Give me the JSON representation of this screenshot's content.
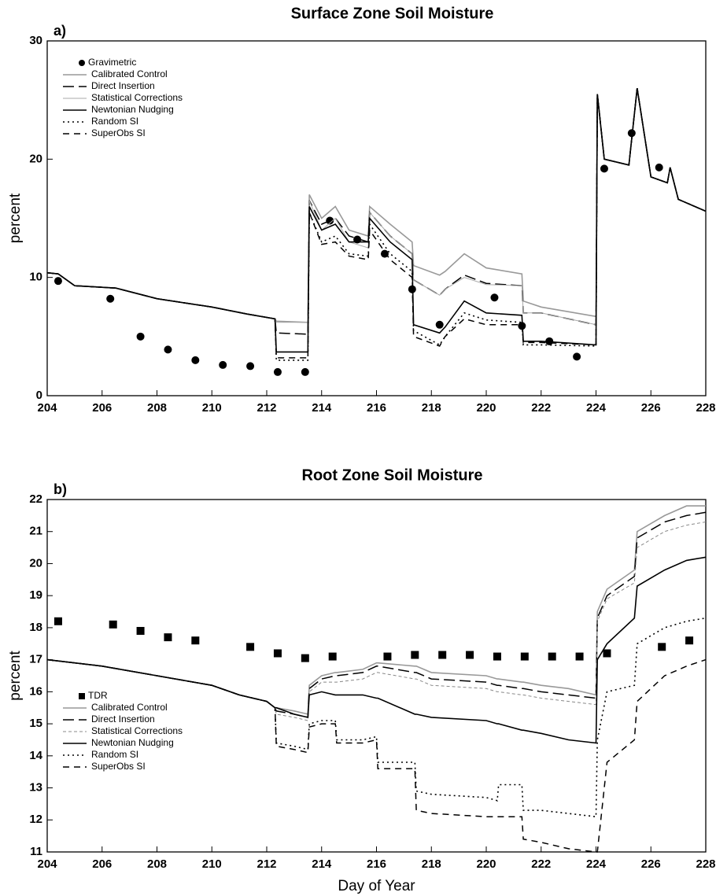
{
  "chart_data": [
    {
      "type": "line",
      "title": "Surface Zone Soil Moisture",
      "panel_label": "a)",
      "ylabel": "percent",
      "xlim": [
        204,
        228
      ],
      "xticks": [
        204,
        206,
        208,
        210,
        212,
        214,
        216,
        218,
        220,
        222,
        224,
        226,
        228
      ],
      "ylim": [
        0,
        30
      ],
      "yticks": [
        0,
        10,
        20,
        30
      ],
      "legend": "upper left",
      "x": [
        204,
        204.4,
        205,
        206.5,
        208,
        210,
        211.3,
        212.3,
        212.35,
        213.5,
        213.55,
        214,
        214.5,
        215,
        215.7,
        215.75,
        216.5,
        217.3,
        217.35,
        218.3,
        218.5,
        219.2,
        220,
        221.3,
        221.35,
        222,
        224,
        224.05,
        224.3,
        225.2,
        225.5,
        226,
        226.6,
        226.7,
        227,
        228
      ],
      "series": [
        {
          "name": "Gravimetric",
          "color": "#000000",
          "marker": "circle",
          "x": [
            204.4,
            206.3,
            207.4,
            208.4,
            209.4,
            210.4,
            211.4,
            212.4,
            213.4,
            214.3,
            215.3,
            216.3,
            217.3,
            218.3,
            220.3,
            221.3,
            222.3,
            223.3,
            224.3,
            225.3,
            226.3
          ],
          "values": [
            9.7,
            8.2,
            5.0,
            3.9,
            3.0,
            2.6,
            2.5,
            2.0,
            2.0,
            14.8,
            13.2,
            12.0,
            9.0,
            6.0,
            8.3,
            5.9,
            4.6,
            3.3,
            19.2,
            22.2,
            19.3
          ]
        },
        {
          "name": "Calibrated Control",
          "color": "#999999",
          "linestyle": "solid",
          "values": [
            10.4,
            10.3,
            9.3,
            9.1,
            8.2,
            7.5,
            6.9,
            6.5,
            6.3,
            6.2,
            17,
            15,
            16,
            14,
            13.5,
            16,
            14.5,
            13,
            11,
            10.2,
            10.5,
            12,
            10.8,
            10.3,
            8,
            7.5,
            6.7,
            25.5,
            20,
            19.5,
            26,
            18.5,
            18,
            19.3,
            16.6,
            15.6
          ]
        },
        {
          "name": "Direct Insertion",
          "color": "#000000",
          "linestyle": "longdash",
          "values": [
            10.4,
            10.3,
            9.3,
            9.1,
            8.2,
            7.5,
            6.9,
            6.5,
            5.3,
            5.2,
            16.5,
            14.5,
            15,
            13.5,
            13,
            15.5,
            13.5,
            12,
            9.8,
            8.5,
            9,
            10.2,
            9.5,
            9.3,
            7,
            7,
            6,
            25.5,
            20,
            19.5,
            26,
            18.5,
            18,
            19.3,
            16.6,
            15.6
          ]
        },
        {
          "name": "Statistical Corrections",
          "color": "#aaaaaa",
          "linestyle": "thin",
          "values": [
            10.4,
            10.3,
            9.3,
            9.1,
            8.2,
            7.5,
            6.9,
            6.5,
            6.2,
            6.2,
            16.5,
            14,
            15,
            13,
            12.5,
            15.5,
            13.5,
            12,
            9.8,
            8.5,
            9,
            10,
            9.4,
            9.3,
            7,
            7,
            6,
            25.5,
            20,
            19.5,
            26,
            18.5,
            18,
            19.3,
            16.6,
            15.6
          ]
        },
        {
          "name": "Newtonian Nudging",
          "color": "#000000",
          "linestyle": "solid",
          "values": [
            10.4,
            10.3,
            9.3,
            9.1,
            8.2,
            7.5,
            6.9,
            6.5,
            3.7,
            3.7,
            16,
            14,
            14.5,
            13,
            13,
            15,
            13,
            11.5,
            6,
            5.3,
            5.8,
            8,
            7,
            6.8,
            4.6,
            4.6,
            4.3,
            25.5,
            20,
            19.5,
            26,
            18.5,
            18,
            19.3,
            16.6,
            15.6
          ]
        },
        {
          "name": "Random SI",
          "color": "#000000",
          "linestyle": "dotted",
          "values": [
            10.4,
            10.3,
            9.3,
            9.1,
            8.2,
            7.5,
            6.9,
            6.5,
            3.0,
            3.0,
            15.5,
            13,
            13.5,
            12,
            11.8,
            14.5,
            12,
            10.5,
            5.5,
            4.3,
            5,
            7,
            6.4,
            6.2,
            4.3,
            4.3,
            4.2,
            25.5,
            20,
            19.5,
            26,
            18.5,
            18,
            19.3,
            16.6,
            15.6
          ]
        },
        {
          "name": "SuperObs SI",
          "color": "#000000",
          "linestyle": "dashed",
          "values": [
            10.4,
            10.3,
            9.3,
            9.1,
            8.2,
            7.5,
            6.9,
            6.5,
            3.2,
            3.2,
            15.5,
            12.8,
            13,
            11.8,
            11.5,
            14,
            11.5,
            10,
            5,
            4.2,
            5,
            6.5,
            6,
            6,
            4.5,
            4.5,
            4.3,
            25.5,
            20,
            19.5,
            26,
            18.5,
            18,
            19.3,
            16.6,
            15.6
          ]
        }
      ]
    },
    {
      "type": "line",
      "title": "Root Zone Soil Moisture",
      "panel_label": "b)",
      "ylabel": "percent",
      "xlabel": "Day of Year",
      "xlim": [
        204,
        228
      ],
      "xticks": [
        204,
        206,
        208,
        210,
        212,
        214,
        216,
        218,
        220,
        222,
        224,
        226,
        228
      ],
      "ylim": [
        11,
        22
      ],
      "yticks": [
        11,
        12,
        13,
        14,
        15,
        16,
        17,
        18,
        19,
        20,
        21,
        22
      ],
      "legend": "lower left",
      "x": [
        204,
        206,
        208,
        210,
        211,
        212,
        212.3,
        212.35,
        213,
        213.5,
        213.55,
        214,
        214.5,
        214.55,
        215.5,
        216,
        216.05,
        217.4,
        217.45,
        218,
        220,
        220.4,
        220.45,
        221.3,
        221.35,
        222,
        223,
        224,
        224.05,
        224.4,
        225.4,
        225.5,
        226.5,
        227.3,
        228
      ],
      "series": [
        {
          "name": "TDR",
          "color": "#000000",
          "marker": "square",
          "x": [
            204.4,
            206.4,
            207.4,
            208.4,
            209.4,
            211.4,
            212.4,
            213.4,
            214.4,
            216.4,
            217.4,
            218.4,
            219.4,
            220.4,
            221.4,
            222.4,
            223.4,
            224.4,
            226.4,
            227.4
          ],
          "values": [
            18.2,
            18.1,
            17.9,
            17.7,
            17.6,
            17.4,
            17.2,
            17.05,
            17.1,
            17.1,
            17.15,
            17.15,
            17.15,
            17.1,
            17.1,
            17.1,
            17.1,
            17.2,
            17.4,
            17.6
          ]
        },
        {
          "name": "Calibrated Control",
          "color": "#999999",
          "linestyle": "solid",
          "values": [
            17,
            16.8,
            16.5,
            16.2,
            15.9,
            15.7,
            15.5,
            15.5,
            15.4,
            15.3,
            16.2,
            16.5,
            16.6,
            16.6,
            16.7,
            16.9,
            16.9,
            16.8,
            16.8,
            16.6,
            16.5,
            16.4,
            16.4,
            16.3,
            16.3,
            16.2,
            16.1,
            15.9,
            18.5,
            19.2,
            19.8,
            21.0,
            21.5,
            21.8,
            21.8
          ]
        },
        {
          "name": "Direct Insertion",
          "color": "#000000",
          "linestyle": "longdash",
          "values": [
            17,
            16.8,
            16.5,
            16.2,
            15.9,
            15.7,
            15.5,
            15.4,
            15.3,
            15.2,
            16.1,
            16.4,
            16.5,
            16.5,
            16.6,
            16.8,
            16.8,
            16.6,
            16.6,
            16.4,
            16.3,
            16.2,
            16.2,
            16.1,
            16.1,
            16,
            15.9,
            15.8,
            18.3,
            19,
            19.6,
            20.8,
            21.3,
            21.5,
            21.6
          ]
        },
        {
          "name": "Statistical Corrections",
          "color": "#888888",
          "linestyle": "finedash",
          "values": [
            17,
            16.8,
            16.5,
            16.2,
            15.9,
            15.7,
            15.5,
            15.3,
            15.2,
            15.1,
            16,
            16.3,
            16.3,
            16.3,
            16.4,
            16.6,
            16.6,
            16.4,
            16.4,
            16.2,
            16.1,
            16,
            16,
            15.9,
            15.9,
            15.8,
            15.7,
            15.6,
            18.2,
            18.9,
            19.4,
            20.5,
            21,
            21.2,
            21.3
          ]
        },
        {
          "name": "Newtonian Nudging",
          "color": "#000000",
          "linestyle": "solid",
          "values": [
            17,
            16.8,
            16.5,
            16.2,
            15.9,
            15.7,
            15.5,
            15.5,
            15.3,
            15.2,
            15.9,
            16,
            15.9,
            15.9,
            15.9,
            15.8,
            15.8,
            15.3,
            15.3,
            15.2,
            15.1,
            15,
            15,
            14.8,
            14.8,
            14.7,
            14.5,
            14.4,
            17,
            17.5,
            18.3,
            19.3,
            19.8,
            20.1,
            20.2
          ]
        },
        {
          "name": "Random SI",
          "color": "#000000",
          "linestyle": "dotted",
          "values": [
            17,
            16.8,
            16.5,
            16.2,
            15.9,
            15.7,
            15.5,
            14.4,
            14.3,
            14.2,
            15,
            15.1,
            15.1,
            14.5,
            14.5,
            14.6,
            13.8,
            13.8,
            12.9,
            12.8,
            12.7,
            12.6,
            13.1,
            13.1,
            12.3,
            12.3,
            12.2,
            12.1,
            14.5,
            16,
            16.2,
            17.5,
            18,
            18.2,
            18.3
          ]
        },
        {
          "name": "SuperObs SI",
          "color": "#000000",
          "linestyle": "dashed",
          "values": [
            17,
            16.8,
            16.5,
            16.2,
            15.9,
            15.7,
            15.5,
            14.3,
            14.2,
            14.1,
            14.9,
            15,
            15,
            14.4,
            14.4,
            14.5,
            13.6,
            13.6,
            12.3,
            12.2,
            12.1,
            12.1,
            12.1,
            12.1,
            11.4,
            11.3,
            11.1,
            11.0,
            11.0,
            13.8,
            14.5,
            15.7,
            16.5,
            16.8,
            17.0
          ]
        }
      ]
    }
  ]
}
